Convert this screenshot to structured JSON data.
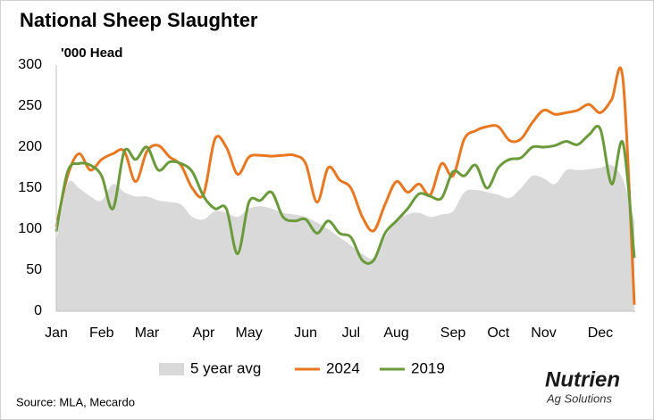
{
  "chart_data": {
    "type": "line",
    "title": "National Sheep Slaughter",
    "y_label": "'000 Head",
    "source": "Source: MLA, Mecardo",
    "logo_name": "Nutrien",
    "logo_tagline": "Ag Solutions",
    "categories": [
      "Jan",
      null,
      null,
      null,
      "Feb",
      null,
      null,
      null,
      "Mar",
      null,
      null,
      null,
      null,
      "Apr",
      null,
      null,
      null,
      "May",
      null,
      null,
      null,
      null,
      "Jun",
      null,
      null,
      null,
      "Jul",
      null,
      null,
      null,
      "Aug",
      null,
      null,
      null,
      null,
      "Sep",
      null,
      null,
      null,
      "Oct",
      null,
      null,
      null,
      "Nov",
      null,
      null,
      null,
      null,
      "Dec",
      null,
      null,
      null
    ],
    "ylim": [
      0,
      300
    ],
    "yticks": [
      0,
      50,
      100,
      150,
      200,
      250,
      300
    ],
    "grid": false,
    "legend": "bottom",
    "series": [
      {
        "name": "5 year avg",
        "style": "area",
        "color": "#d9d9d9",
        "values": [
          85,
          155,
          150,
          140,
          135,
          155,
          145,
          140,
          140,
          135,
          133,
          130,
          115,
          112,
          122,
          120,
          115,
          125,
          128,
          125,
          120,
          118,
          115,
          108,
          100,
          90,
          80,
          70,
          65,
          90,
          110,
          118,
          120,
          115,
          118,
          122,
          145,
          148,
          145,
          142,
          138,
          150,
          165,
          162,
          155,
          172,
          172,
          173,
          175,
          178,
          160,
          110
        ]
      },
      {
        "name": "2024",
        "style": "line",
        "color": "#e87722",
        "values": [
          103,
          165,
          192,
          172,
          185,
          192,
          195,
          158,
          195,
          202,
          188,
          178,
          150,
          143,
          210,
          200,
          167,
          188,
          190,
          189,
          190,
          190,
          180,
          133,
          175,
          160,
          150,
          115,
          98,
          130,
          158,
          145,
          155,
          142,
          180,
          165,
          210,
          220,
          225,
          225,
          208,
          210,
          230,
          245,
          240,
          242,
          245,
          252,
          242,
          258,
          282,
          8
        ]
      },
      {
        "name": "2019",
        "style": "line",
        "color": "#6a9a3a",
        "values": [
          97,
          170,
          180,
          178,
          165,
          125,
          195,
          185,
          200,
          172,
          182,
          180,
          170,
          140,
          125,
          125,
          70,
          133,
          135,
          145,
          115,
          110,
          112,
          95,
          110,
          95,
          90,
          62,
          62,
          95,
          110,
          125,
          143,
          140,
          138,
          170,
          165,
          178,
          150,
          175,
          185,
          187,
          200,
          200,
          202,
          207,
          203,
          215,
          222,
          155,
          205,
          65
        ]
      }
    ]
  }
}
